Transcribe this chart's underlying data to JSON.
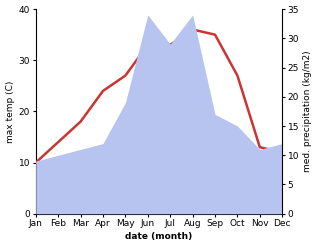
{
  "months": [
    "Jan",
    "Feb",
    "Mar",
    "Apr",
    "May",
    "Jun",
    "Jul",
    "Aug",
    "Sep",
    "Oct",
    "Nov",
    "Dec"
  ],
  "temperature": [
    10,
    14,
    18,
    24,
    27,
    33,
    33,
    36,
    35,
    27,
    13,
    12
  ],
  "precipitation": [
    9,
    10,
    11,
    12,
    19,
    34,
    29,
    34,
    17,
    15,
    11,
    12
  ],
  "temp_color": "#cc3333",
  "precip_color": "#b8c4f0",
  "ylabel_left": "max temp (C)",
  "ylabel_right": "med. precipitation (kg/m2)",
  "xlabel": "date (month)",
  "ylim_left": [
    0,
    40
  ],
  "ylim_right": [
    0,
    35
  ],
  "yticks_left": [
    0,
    10,
    20,
    30,
    40
  ],
  "yticks_right": [
    0,
    5,
    10,
    15,
    20,
    25,
    30,
    35
  ],
  "bg_color": "#ffffff",
  "line_width": 1.8,
  "title_fontsize": 7,
  "label_fontsize": 6.5,
  "tick_fontsize": 6.5
}
